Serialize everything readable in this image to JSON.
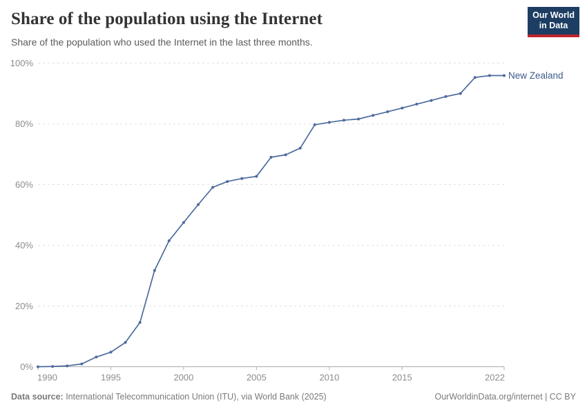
{
  "header": {
    "title": "Share of the population using the Internet",
    "subtitle": "Share of the population who used the Internet in the last three months.",
    "logo": {
      "line1": "Our World",
      "line2": "in Data",
      "bg_color": "#1d3d63",
      "accent_color": "#c0262d"
    }
  },
  "chart_data": {
    "type": "line",
    "title": "Share of the population using the Internet",
    "subtitle": "Share of the population who used the Internet in the last three months.",
    "xlabel": "",
    "ylabel": "",
    "xlim": [
      1990,
      2022
    ],
    "ylim": [
      0,
      100
    ],
    "grid": "horizontal-dashed",
    "legend_position": "end-of-line-label",
    "x_ticks": [
      1990,
      1995,
      2000,
      2005,
      2010,
      2015,
      2022
    ],
    "x_tick_labels": [
      "1990",
      "1995",
      "2000",
      "2005",
      "2010",
      "2015",
      "2022"
    ],
    "y_ticks": [
      0,
      20,
      40,
      60,
      80,
      100
    ],
    "y_tick_labels": [
      "0%",
      "20%",
      "40%",
      "60%",
      "80%",
      "100%"
    ],
    "series": [
      {
        "name": "New Zealand",
        "color": "#4c6a9c",
        "label_color": "#3d5a8c",
        "x": [
          1990,
          1991,
          1992,
          1993,
          1994,
          1995,
          1996,
          1997,
          1998,
          1999,
          2000,
          2001,
          2002,
          2003,
          2004,
          2005,
          2006,
          2007,
          2008,
          2009,
          2010,
          2011,
          2012,
          2013,
          2014,
          2015,
          2016,
          2017,
          2018,
          2019,
          2020,
          2021,
          2022
        ],
        "values": [
          0,
          0.1,
          0.3,
          0.9,
          3.2,
          4.8,
          8.0,
          14.6,
          31.7,
          41.5,
          47.5,
          53.4,
          59.1,
          61.0,
          62.0,
          62.7,
          69.0,
          69.8,
          72.0,
          79.7,
          80.5,
          81.2,
          81.6,
          82.8,
          84.0,
          85.2,
          86.5,
          87.7,
          89.0,
          90.0,
          95.3,
          95.9,
          95.9
        ]
      }
    ]
  },
  "footer": {
    "datasource_label": "Data source:",
    "datasource_text": " International Telecommunication Union (ITU), via World Bank (2025)",
    "attribution": "OurWorldinData.org/internet | CC BY"
  }
}
